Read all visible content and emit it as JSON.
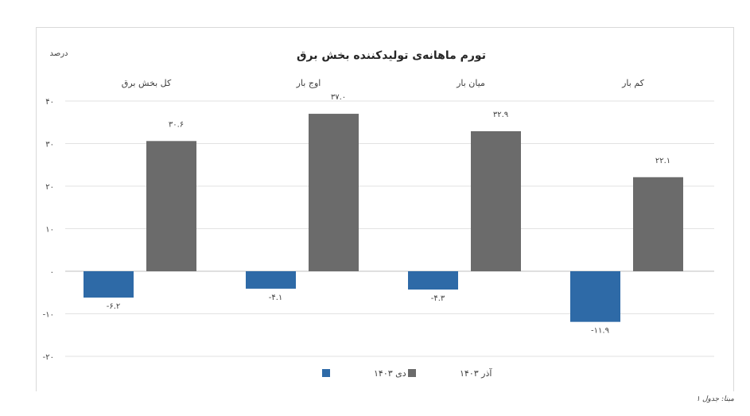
{
  "chart_data": {
    "type": "bar",
    "title": "تورم ماهانه‌ی تولیدکننده بخش برق",
    "unit_label": "درصد",
    "categories": [
      "کل بخش برق",
      "اوج بار",
      "میان بار",
      "کم بار"
    ],
    "series": [
      {
        "name": "دی ۱۴۰۳",
        "color": "#2e6aa7",
        "values": [
          -6.2,
          -4.1,
          -4.3,
          -11.9
        ],
        "labels": [
          "-۶.۲",
          "-۴.۱",
          "-۴.۳",
          "-۱۱.۹"
        ]
      },
      {
        "name": "آذر ۱۴۰۳",
        "color": "#6b6b6b",
        "values": [
          30.6,
          37.0,
          32.9,
          22.1
        ],
        "labels": [
          "۳۰.۶",
          "۳۷.۰",
          "۳۲.۹",
          "۲۲.۱"
        ]
      }
    ],
    "ylim": [
      -20,
      40
    ],
    "yticks": [
      40,
      30,
      20,
      10,
      0,
      -10,
      -20
    ],
    "ytick_labels": [
      "۴۰",
      "۳۰",
      "۲۰",
      "۱۰",
      "۰",
      "-۱۰",
      "-۲۰"
    ],
    "grid": true,
    "legend_position": "bottom"
  },
  "source_note": "مبنا: جدول ۱"
}
